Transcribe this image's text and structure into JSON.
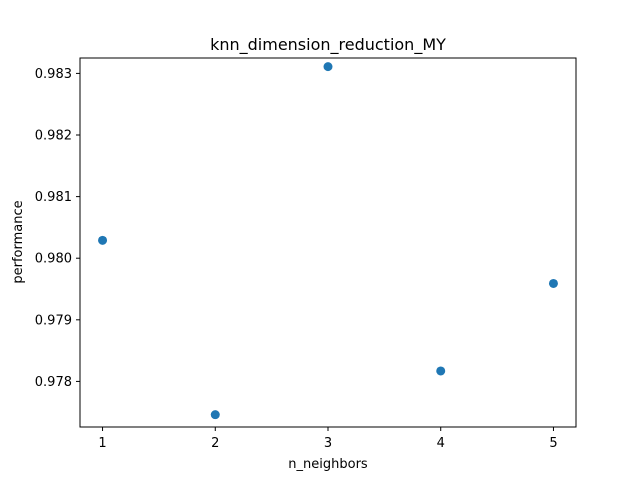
{
  "chart_data": {
    "type": "scatter",
    "title": "knn_dimension_reduction_MY",
    "xlabel": "n_neighbors",
    "ylabel": "performance",
    "x": [
      1,
      2,
      3,
      4,
      5
    ],
    "y": [
      0.98029,
      0.97746,
      0.98311,
      0.97817,
      0.97959
    ],
    "xticks": [
      "1",
      "2",
      "3",
      "4",
      "5"
    ],
    "yticks": [
      "0.978",
      "0.979",
      "0.980",
      "0.981",
      "0.982",
      "0.983"
    ],
    "xlim": [
      0.8,
      5.2
    ],
    "ylim": [
      0.97726,
      0.98325
    ],
    "grid": false,
    "marker_color": "#1f77b4"
  }
}
